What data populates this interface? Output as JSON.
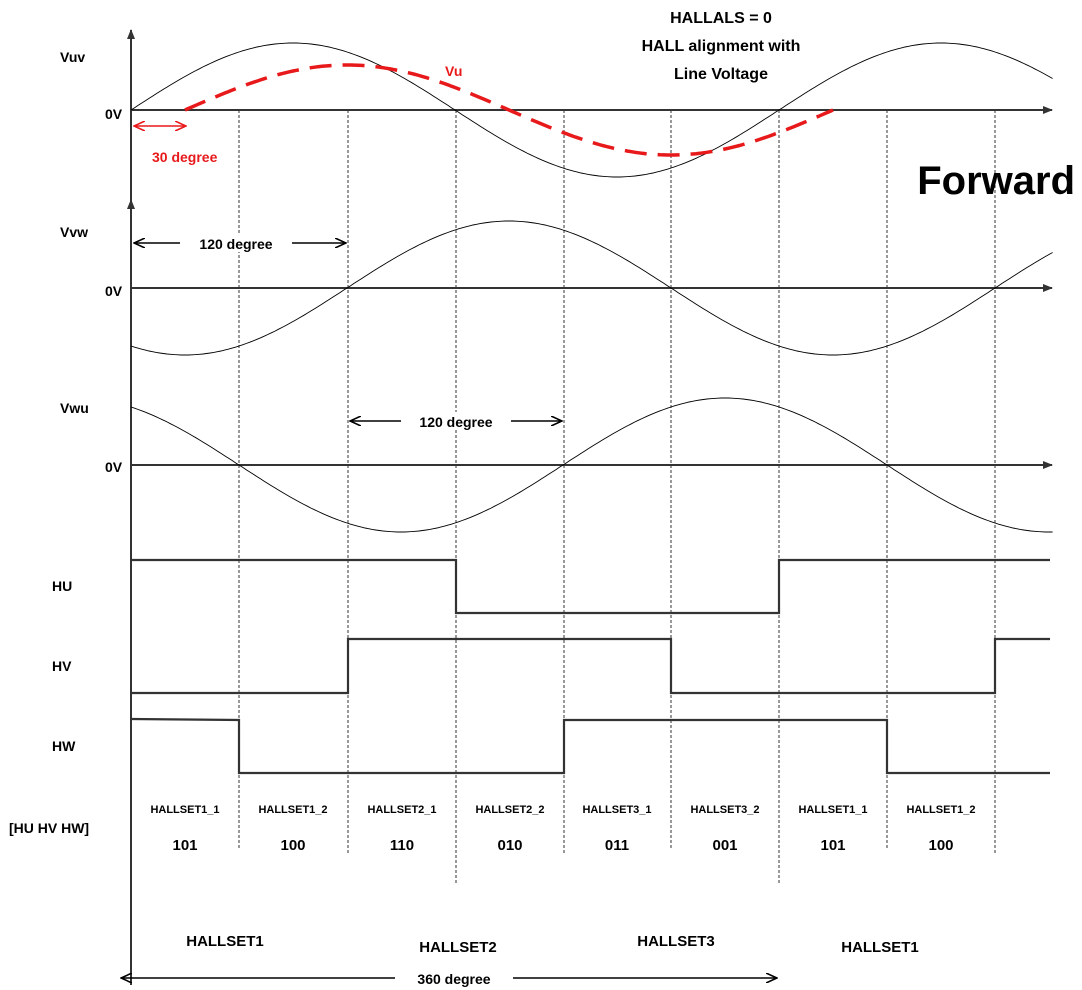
{
  "header": {
    "title_lines": [
      "HALLALS = 0",
      "HALL alignment with",
      "Line Voltage"
    ],
    "direction": "Forward"
  },
  "waveforms": {
    "vuv": "Vuv",
    "vvw": "Vvw",
    "vwu": "Vwu",
    "zero": "0V",
    "vu": "Vu"
  },
  "annotations": {
    "phase_shift": "30 degree",
    "spacing_a": "120 degree",
    "spacing_b": "120 degree",
    "period": "360 degree"
  },
  "signals": {
    "hu": "HU",
    "hv": "HV",
    "hw": "HW",
    "code_header": "[HU HV HW]"
  },
  "states": {
    "codes": [
      "101",
      "100",
      "110",
      "010",
      "011",
      "001",
      "101",
      "100"
    ],
    "segments": [
      "HALLSET1_1",
      "HALLSET1_2",
      "HALLSET2_1",
      "HALLSET2_2",
      "HALLSET3_1",
      "HALLSET3_2",
      "HALLSET1_1",
      "HALLSET1_2"
    ],
    "groups": [
      "HALLSET1",
      "HALLSET2",
      "HALLSET3",
      "HALLSET1"
    ]
  },
  "colors": {
    "trace": "#000000",
    "axis": "#333333",
    "signal": "#333333",
    "highlight": "#e8191a"
  }
}
